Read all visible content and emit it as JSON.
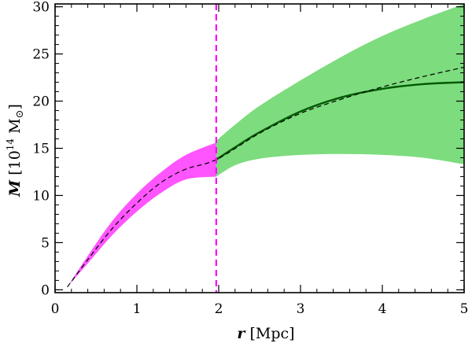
{
  "chart_data": {
    "type": "line",
    "title": "",
    "xlabel": {
      "var": "r",
      "unit": " [Mpc]"
    },
    "ylabel": {
      "var": "M",
      "pre": " [10",
      "exp": "14",
      "post": " M",
      "sun": "⊙",
      "close": "]"
    },
    "xlim": [
      0,
      5
    ],
    "ylim": [
      -0.3,
      30.3
    ],
    "xticks": [
      0,
      1,
      2,
      3,
      4,
      5
    ],
    "yticks": [
      0,
      5,
      10,
      15,
      20,
      25,
      30
    ],
    "xtick_labels": [
      "0",
      "1",
      "2",
      "3",
      "4",
      "5"
    ],
    "ytick_labels": [
      "0",
      "5",
      "10",
      "15",
      "20",
      "25",
      "30"
    ],
    "vline": {
      "x": 1.97,
      "color": "#ff00ff"
    },
    "colors": {
      "inner_band": "#ff55ff",
      "outer_band": "#7ddc7d",
      "fit_line": "#005a00",
      "model_line": "#000000"
    },
    "series": [
      {
        "name": "inner_band",
        "kind": "band",
        "x": [
          0.15,
          0.4,
          0.7,
          1.0,
          1.3,
          1.6,
          1.97
        ],
        "lower": [
          0.3,
          2.8,
          5.8,
          8.3,
          10.3,
          11.7,
          12.0
        ],
        "upper": [
          0.3,
          3.6,
          7.3,
          10.2,
          12.5,
          14.3,
          15.6
        ]
      },
      {
        "name": "outer_band",
        "kind": "band",
        "x": [
          1.97,
          2.2,
          2.5,
          3.0,
          3.5,
          4.0,
          4.5,
          5.0
        ],
        "lower": [
          12.0,
          13.2,
          13.9,
          14.3,
          14.4,
          14.3,
          14.0,
          13.3
        ],
        "upper": [
          15.8,
          17.5,
          19.5,
          22.2,
          24.7,
          26.9,
          28.7,
          30.3
        ]
      },
      {
        "name": "fit_line",
        "kind": "line",
        "x": [
          1.97,
          2.2,
          2.5,
          3.0,
          3.5,
          4.0,
          4.5,
          5.0
        ],
        "y": [
          13.8,
          15.1,
          16.7,
          18.9,
          20.4,
          21.3,
          21.8,
          22.0
        ]
      },
      {
        "name": "model_line",
        "kind": "dashed",
        "x": [
          0.15,
          0.4,
          0.7,
          1.0,
          1.3,
          1.6,
          1.97,
          2.5,
          3.0,
          3.5,
          4.0,
          4.5,
          5.0
        ],
        "y": [
          0.3,
          3.2,
          6.5,
          9.2,
          11.4,
          12.8,
          13.8,
          16.6,
          18.7,
          20.2,
          21.5,
          22.6,
          23.6
        ]
      }
    ]
  }
}
